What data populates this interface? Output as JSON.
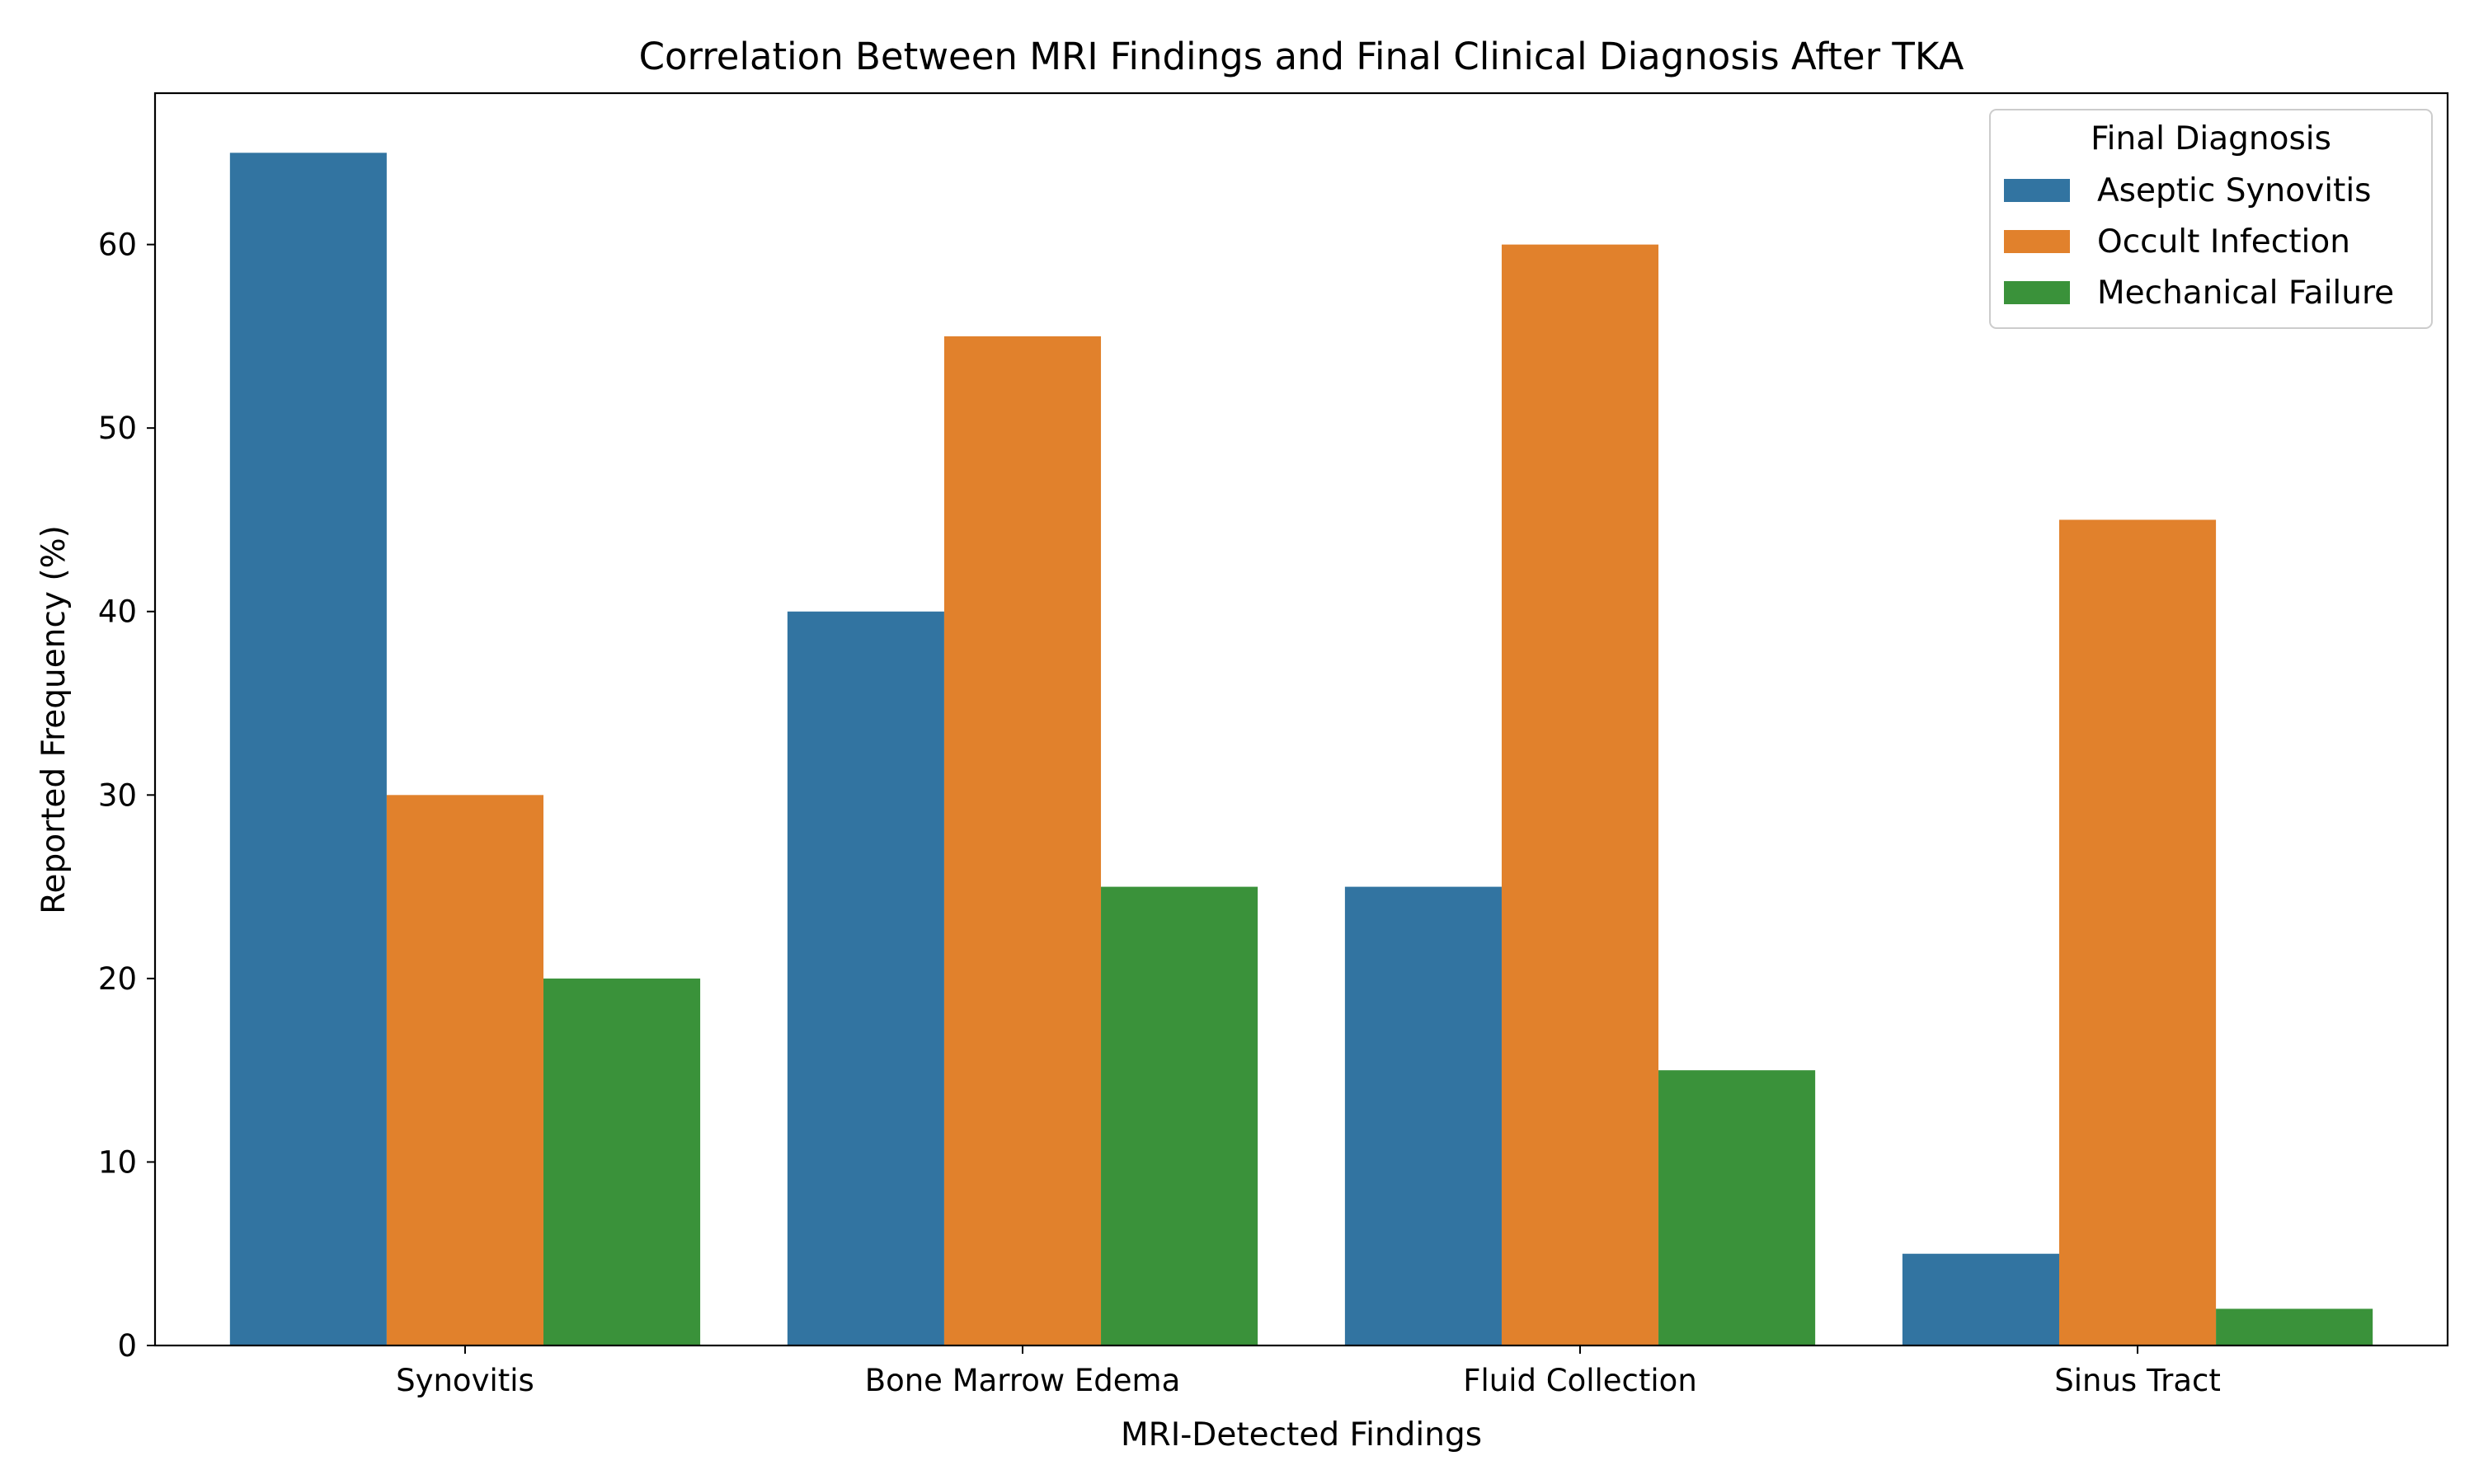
{
  "chart_data": {
    "type": "bar",
    "title": "Correlation Between MRI Findings and Final Clinical Diagnosis After TKA",
    "xlabel": "MRI-Detected Findings",
    "ylabel": "Reported Frequency (%)",
    "categories": [
      "Synovitis",
      "Bone Marrow Edema",
      "Fluid Collection",
      "Sinus Tract"
    ],
    "series": [
      {
        "name": "Aseptic Synovitis",
        "color": "#3274a1",
        "values": [
          65,
          40,
          25,
          5
        ]
      },
      {
        "name": "Occult Infection",
        "color": "#e1812c",
        "values": [
          30,
          55,
          60,
          45
        ]
      },
      {
        "name": "Mechanical Failure",
        "color": "#3a923a",
        "values": [
          20,
          25,
          15,
          2
        ]
      }
    ],
    "ylim": [
      0,
      68.25
    ],
    "yticks": [
      0,
      10,
      20,
      30,
      40,
      50,
      60
    ],
    "legend": {
      "title": "Final Diagnosis",
      "placement": "top-right"
    },
    "grid": false
  }
}
